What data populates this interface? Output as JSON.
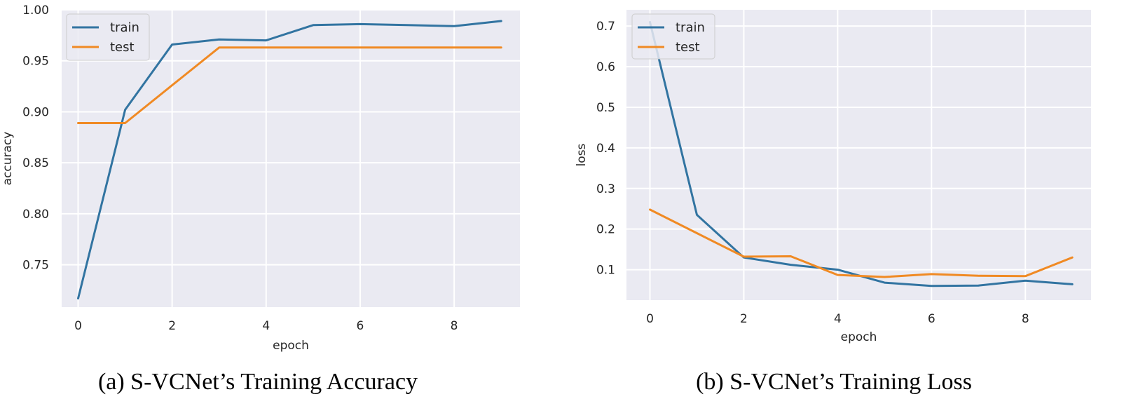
{
  "chart_data": [
    {
      "type": "line",
      "caption": "(a) S-VCNet’s Training Accuracy",
      "xlabel": "epoch",
      "ylabel": "accuracy",
      "xlim": [
        -0.35,
        9.4
      ],
      "ylim": [
        0.7085,
        1.0
      ],
      "xticks": [
        0,
        2,
        4,
        6,
        8
      ],
      "xtick_labels": [
        "0",
        "2",
        "4",
        "6",
        "8"
      ],
      "yticks": [
        0.75,
        0.8,
        0.85,
        0.9,
        0.95,
        1.0
      ],
      "ytick_labels": [
        "0.75",
        "0.80",
        "0.85",
        "0.90",
        "0.95",
        "1.00"
      ],
      "grid": true,
      "legend_position": "top-left",
      "series": [
        {
          "name": "train",
          "color": "#3274a1",
          "x": [
            0,
            1,
            2,
            3,
            4,
            5,
            6,
            7,
            8,
            9
          ],
          "values": [
            0.717,
            0.902,
            0.966,
            0.971,
            0.97,
            0.985,
            0.986,
            0.985,
            0.984,
            0.989
          ]
        },
        {
          "name": "test",
          "color": "#f08a24",
          "x": [
            0,
            1,
            2,
            3,
            4,
            5,
            6,
            7,
            8,
            9
          ],
          "values": [
            0.889,
            0.889,
            0.926,
            0.963,
            0.963,
            0.963,
            0.963,
            0.963,
            0.963,
            0.963
          ]
        }
      ]
    },
    {
      "type": "line",
      "caption": "(b) S-VCNet’s Training Loss",
      "xlabel": "epoch",
      "ylabel": "loss",
      "xlim": [
        -0.5,
        9.4
      ],
      "ylim": [
        0.025,
        0.74
      ],
      "xticks": [
        0,
        2,
        4,
        6,
        8
      ],
      "xtick_labels": [
        "0",
        "2",
        "4",
        "6",
        "8"
      ],
      "yticks": [
        0.1,
        0.2,
        0.3,
        0.4,
        0.5,
        0.6,
        0.7
      ],
      "ytick_labels": [
        "0.1",
        "0.2",
        "0.3",
        "0.4",
        "0.5",
        "0.6",
        "0.7"
      ],
      "grid": true,
      "legend_position": "top-left",
      "series": [
        {
          "name": "train",
          "color": "#3274a1",
          "x": [
            0,
            1,
            2,
            3,
            4,
            5,
            6,
            7,
            8,
            9
          ],
          "values": [
            0.71,
            0.235,
            0.13,
            0.112,
            0.1,
            0.068,
            0.06,
            0.061,
            0.073,
            0.064
          ]
        },
        {
          "name": "test",
          "color": "#f08a24",
          "x": [
            0,
            1,
            2,
            3,
            4,
            5,
            6,
            7,
            8,
            9
          ],
          "values": [
            0.248,
            0.19,
            0.132,
            0.133,
            0.087,
            0.082,
            0.089,
            0.085,
            0.084,
            0.13
          ]
        }
      ]
    }
  ]
}
